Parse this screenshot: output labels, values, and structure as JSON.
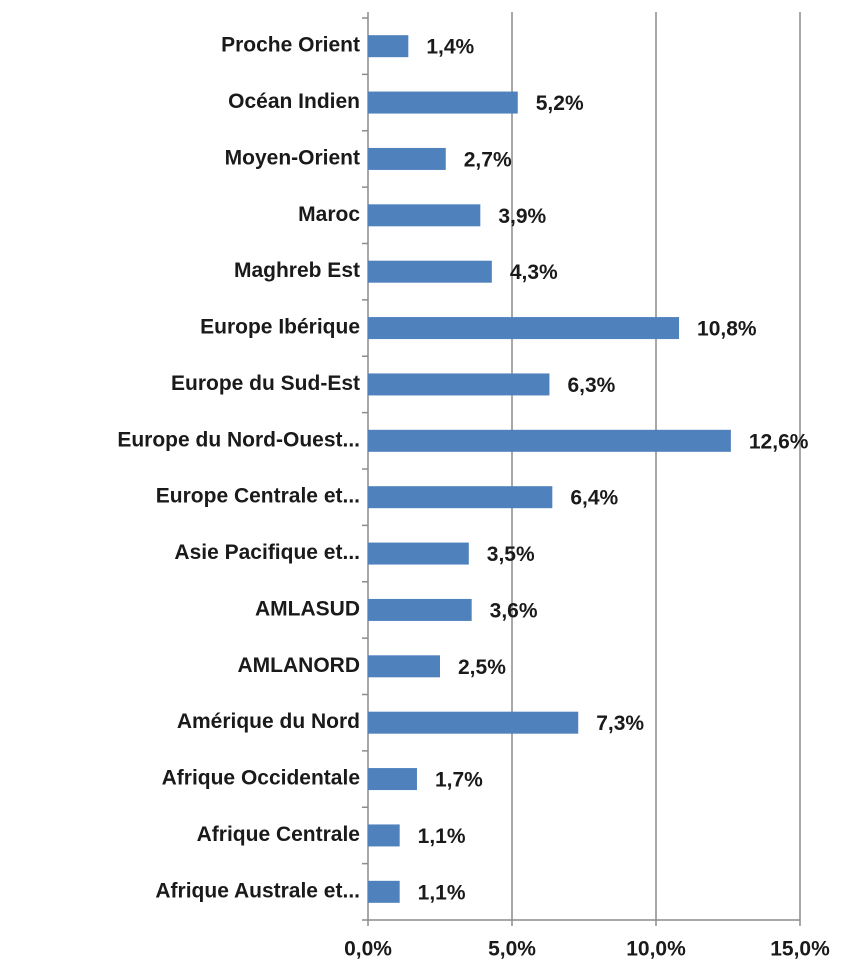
{
  "chart_data": {
    "type": "bar",
    "orientation": "horizontal",
    "categories": [
      "Proche Orient",
      "Océan Indien",
      "Moyen-Orient",
      "Maroc",
      "Maghreb Est",
      "Europe Ibérique",
      "Europe du Sud-Est",
      "Europe du Nord-Ouest...",
      "Europe Centrale et...",
      "Asie Pacifique et...",
      "AMLASUD",
      "AMLANORD",
      "Amérique du Nord",
      "Afrique Occidentale",
      "Afrique Centrale",
      "Afrique Australe et..."
    ],
    "values": [
      1.4,
      5.2,
      2.7,
      3.9,
      4.3,
      10.8,
      6.3,
      12.6,
      6.4,
      3.5,
      3.6,
      2.5,
      7.3,
      1.7,
      1.1,
      1.1
    ],
    "value_labels": [
      "1,4%",
      "5,2%",
      "2,7%",
      "3,9%",
      "4,3%",
      "10,8%",
      "6,3%",
      "12,6%",
      "6,4%",
      "3,5%",
      "3,6%",
      "2,5%",
      "7,3%",
      "1,7%",
      "1,1%",
      "1,1%"
    ],
    "color": "#4f81bd",
    "xlim": [
      0,
      15
    ],
    "xticks": [
      {
        "value": 0,
        "label": "0,0%"
      },
      {
        "value": 5,
        "label": "5,0%"
      },
      {
        "value": 10,
        "label": "10,0%"
      },
      {
        "value": 15,
        "label": "15,0%"
      }
    ],
    "grid": true
  }
}
